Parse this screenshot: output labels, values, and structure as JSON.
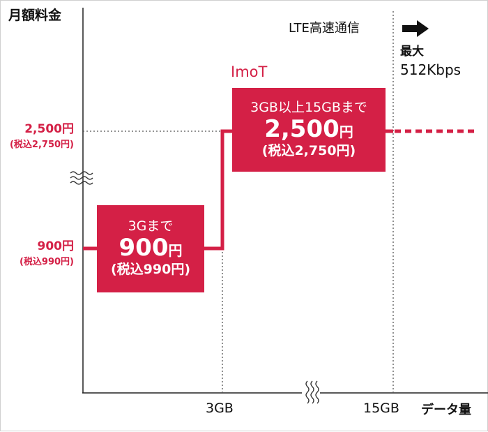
{
  "chart_data": {
    "type": "line",
    "title": "",
    "ylabel": "月額料金",
    "xlabel": "データ量",
    "x_ticks": [
      "3GB",
      "15GB"
    ],
    "y_ticks": [
      {
        "value": 900,
        "label": "900円",
        "sublabel": "(税込990円)"
      },
      {
        "value": 2500,
        "label": "2,500円",
        "sublabel": "(税込2,750円)"
      }
    ],
    "series": [
      {
        "name": "ImoT",
        "x": [
          "0GB",
          "3GB",
          "3GB",
          "15GB"
        ],
        "y": [
          900,
          900,
          2500,
          2500
        ],
        "continues_past_15GB": true,
        "color": "#d42046"
      }
    ],
    "tiers": [
      {
        "range": "3Gまで",
        "price": "900",
        "unit": "円",
        "tax": "(税込990円)"
      },
      {
        "range": "3GB以上15GBまで",
        "price": "2,500",
        "unit": "円",
        "tax": "(税込2,750円)"
      }
    ],
    "annotation": {
      "lte": "LTE高速通信",
      "max_label": "最大",
      "speed": "512Kbps"
    },
    "axis_breaks": [
      "y",
      "x"
    ]
  }
}
